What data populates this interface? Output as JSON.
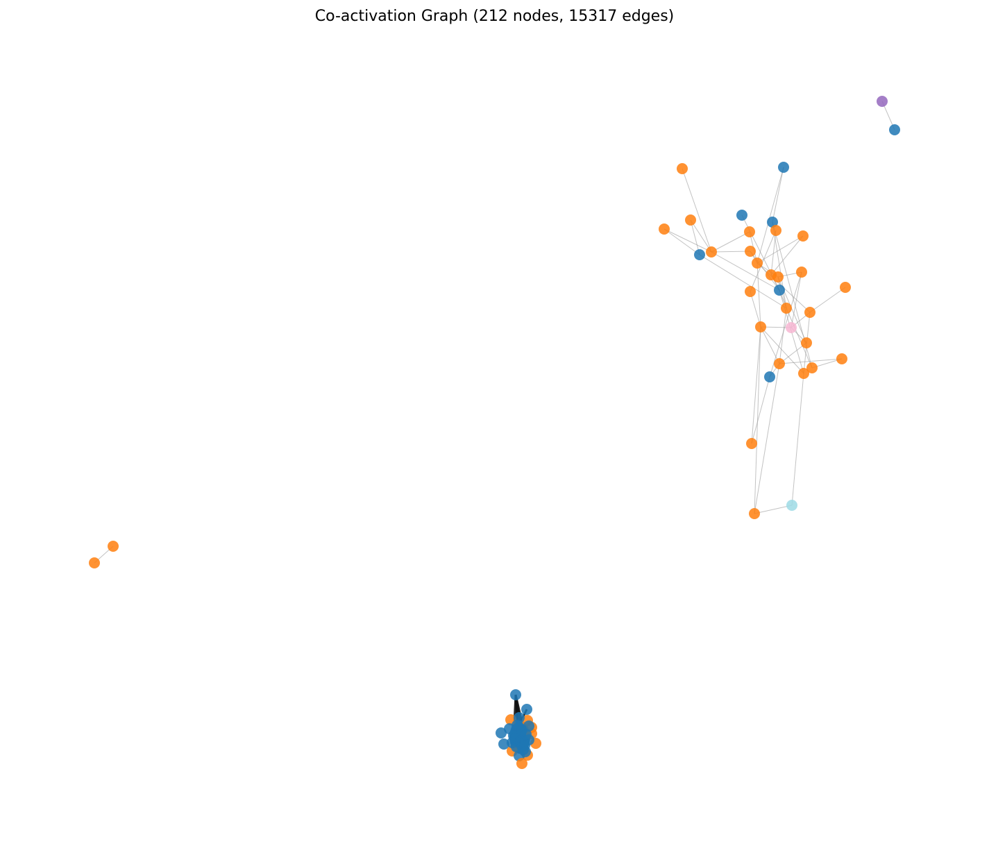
{
  "title": "Co-activation Graph (212 nodes, 15317 edges)",
  "colors": {
    "blue": "#1f77b4",
    "orange": "#ff7f0e",
    "purple": "#9467bd",
    "pink": "#f7b6d2",
    "cyan": "#9edae5",
    "edge": "#999999",
    "dense_edge": "#111111"
  }
}
